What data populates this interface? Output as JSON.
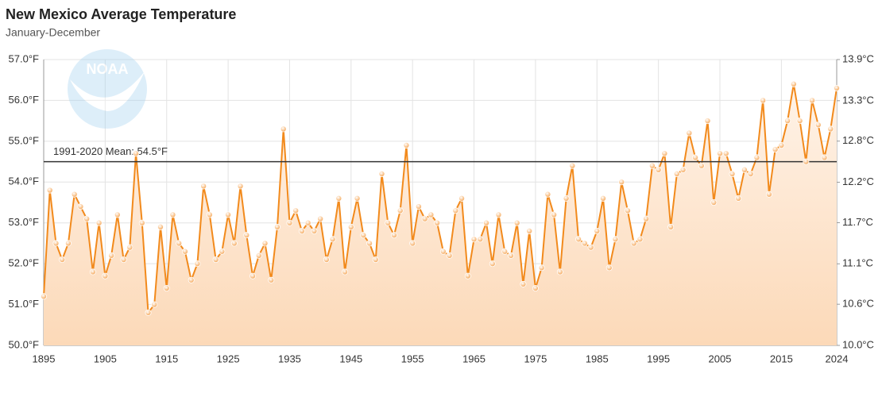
{
  "chart_data": {
    "type": "line",
    "title": "New Mexico Average Temperature",
    "subtitle": "January-December",
    "logo": "NOAA",
    "x": [
      1895,
      1896,
      1897,
      1898,
      1899,
      1900,
      1901,
      1902,
      1903,
      1904,
      1905,
      1906,
      1907,
      1908,
      1909,
      1910,
      1911,
      1912,
      1913,
      1914,
      1915,
      1916,
      1917,
      1918,
      1919,
      1920,
      1921,
      1922,
      1923,
      1924,
      1925,
      1926,
      1927,
      1928,
      1929,
      1930,
      1931,
      1932,
      1933,
      1934,
      1935,
      1936,
      1937,
      1938,
      1939,
      1940,
      1941,
      1942,
      1943,
      1944,
      1945,
      1946,
      1947,
      1948,
      1949,
      1950,
      1951,
      1952,
      1953,
      1954,
      1955,
      1956,
      1957,
      1958,
      1959,
      1960,
      1961,
      1962,
      1963,
      1964,
      1965,
      1966,
      1967,
      1968,
      1969,
      1970,
      1971,
      1972,
      1973,
      1974,
      1975,
      1976,
      1977,
      1978,
      1979,
      1980,
      1981,
      1982,
      1983,
      1984,
      1985,
      1986,
      1987,
      1988,
      1989,
      1990,
      1991,
      1992,
      1993,
      1994,
      1995,
      1996,
      1997,
      1998,
      1999,
      2000,
      2001,
      2002,
      2003,
      2004,
      2005,
      2006,
      2007,
      2008,
      2009,
      2010,
      2011,
      2012,
      2013,
      2014,
      2015,
      2016,
      2017,
      2018,
      2019,
      2020,
      2021,
      2022,
      2023,
      2024
    ],
    "series": [
      {
        "color": "#f28a1c",
        "values": [
          51.2,
          53.8,
          52.5,
          52.1,
          52.5,
          53.7,
          53.4,
          53.1,
          51.8,
          53.0,
          51.7,
          52.2,
          53.2,
          52.1,
          52.4,
          54.7,
          53.0,
          50.8,
          51.0,
          52.9,
          51.4,
          53.2,
          52.5,
          52.3,
          51.6,
          52.0,
          53.9,
          53.2,
          52.1,
          52.3,
          53.2,
          52.5,
          53.9,
          52.7,
          51.7,
          52.2,
          52.5,
          51.6,
          52.9,
          55.3,
          53.0,
          53.3,
          52.8,
          53.0,
          52.8,
          53.1,
          52.1,
          52.6,
          53.6,
          51.8,
          52.9,
          53.6,
          52.7,
          52.5,
          52.1,
          54.2,
          53.0,
          52.7,
          53.3,
          54.9,
          52.5,
          53.4,
          53.1,
          53.2,
          53.0,
          52.3,
          52.2,
          53.3,
          53.6,
          51.7,
          52.6,
          52.6,
          53.0,
          52.0,
          53.2,
          52.3,
          52.2,
          53.0,
          51.5,
          52.8,
          51.4,
          51.9,
          53.7,
          53.2,
          51.8,
          53.6,
          54.4,
          52.6,
          52.5,
          52.4,
          52.8,
          53.6,
          51.9,
          52.6,
          54.0,
          53.3,
          52.5,
          52.6,
          53.1,
          54.4,
          54.3,
          54.7,
          52.9,
          54.2,
          54.3,
          55.2,
          54.6,
          54.4,
          55.5,
          53.5,
          54.7,
          54.7,
          54.2,
          53.6,
          54.3,
          54.2,
          54.6,
          56.0,
          53.7,
          54.8,
          54.9,
          55.5,
          56.4,
          55.5,
          54.5,
          56.0,
          55.4,
          54.6,
          55.3,
          56.3
        ]
      }
    ],
    "xlim": [
      1895,
      2024
    ],
    "xticks": [
      1895,
      1905,
      1915,
      1925,
      1935,
      1945,
      1955,
      1965,
      1975,
      1985,
      1995,
      2005,
      2015,
      2024
    ],
    "ylim": [
      50,
      57
    ],
    "yticks": [
      {
        "value": 50,
        "label": "50.0°F"
      },
      {
        "value": 51,
        "label": "51.0°F"
      },
      {
        "value": 52,
        "label": "52.0°F"
      },
      {
        "value": 53,
        "label": "53.0°F"
      },
      {
        "value": 54,
        "label": "54.0°F"
      },
      {
        "value": 55,
        "label": "55.0°F"
      },
      {
        "value": 56,
        "label": "56.0°F"
      },
      {
        "value": 57,
        "label": "57.0°F"
      }
    ],
    "y2lim": [
      10,
      13.89
    ],
    "y2ticks": [
      {
        "value": 10,
        "label": "10.0°C"
      },
      {
        "value": 10.56,
        "label": "10.6°C"
      },
      {
        "value": 11.11,
        "label": "11.1°C"
      },
      {
        "value": 11.67,
        "label": "11.7°C"
      },
      {
        "value": 12.22,
        "label": "12.2°C"
      },
      {
        "value": 12.78,
        "label": "12.8°C"
      },
      {
        "value": 13.33,
        "label": "13.3°C"
      },
      {
        "value": 13.89,
        "label": "13.9°C"
      }
    ],
    "mean": {
      "value": 54.5,
      "label": "1991-2020 Mean: 54.5°F"
    },
    "grid": true
  }
}
